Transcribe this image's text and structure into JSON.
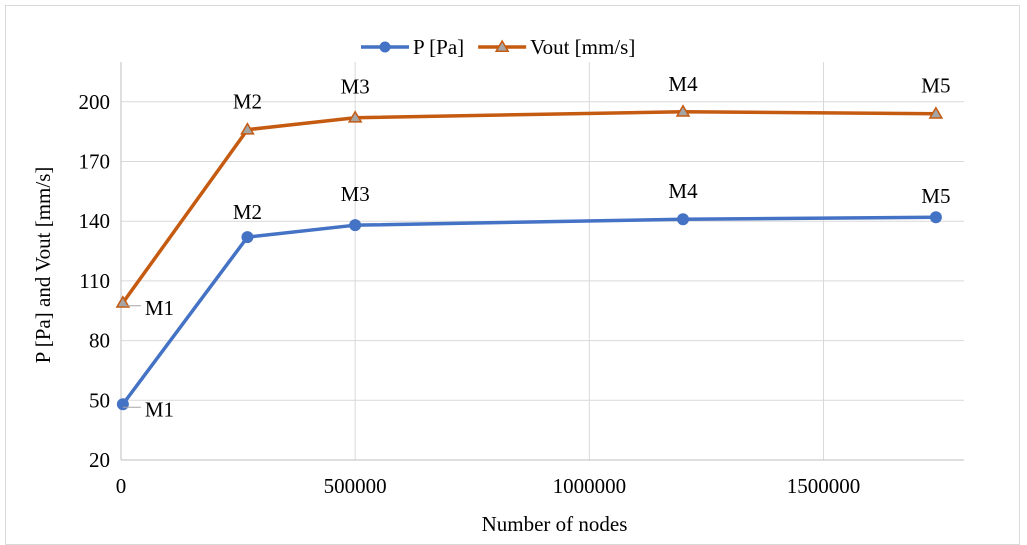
{
  "chart_data": {
    "type": "line",
    "title": "",
    "xlabel": "Number of nodes",
    "ylabel": "P  [Pa] and Vout [mm/s]",
    "xlim": [
      0,
      1800000
    ],
    "ylim": [
      20,
      220
    ],
    "x_ticks": [
      0,
      500000,
      1000000,
      1500000
    ],
    "x_tick_labels": [
      "0",
      "500000",
      "1000000",
      "1500000"
    ],
    "y_ticks": [
      20,
      50,
      80,
      110,
      140,
      170,
      200
    ],
    "y_tick_labels": [
      "20",
      "50",
      "80",
      "110",
      "140",
      "170",
      "200"
    ],
    "grid": true,
    "legend_position": "top-center",
    "series": [
      {
        "name": "P [Pa]",
        "color": "#4472c4",
        "marker": "circle",
        "x": [
          4000,
          270000,
          500000,
          1200000,
          1740000
        ],
        "y": [
          48,
          132,
          138,
          141,
          142
        ],
        "labels": [
          "M1",
          "M2",
          "M3",
          "M4",
          "M5"
        ]
      },
      {
        "name": "Vout [mm/s]",
        "color": "#c55a11",
        "marker": "triangle",
        "x": [
          4000,
          270000,
          500000,
          1200000,
          1740000
        ],
        "y": [
          99,
          186,
          192,
          195,
          194
        ],
        "labels": [
          "M1",
          "M2",
          "M3",
          "M4",
          "M5"
        ]
      }
    ]
  }
}
